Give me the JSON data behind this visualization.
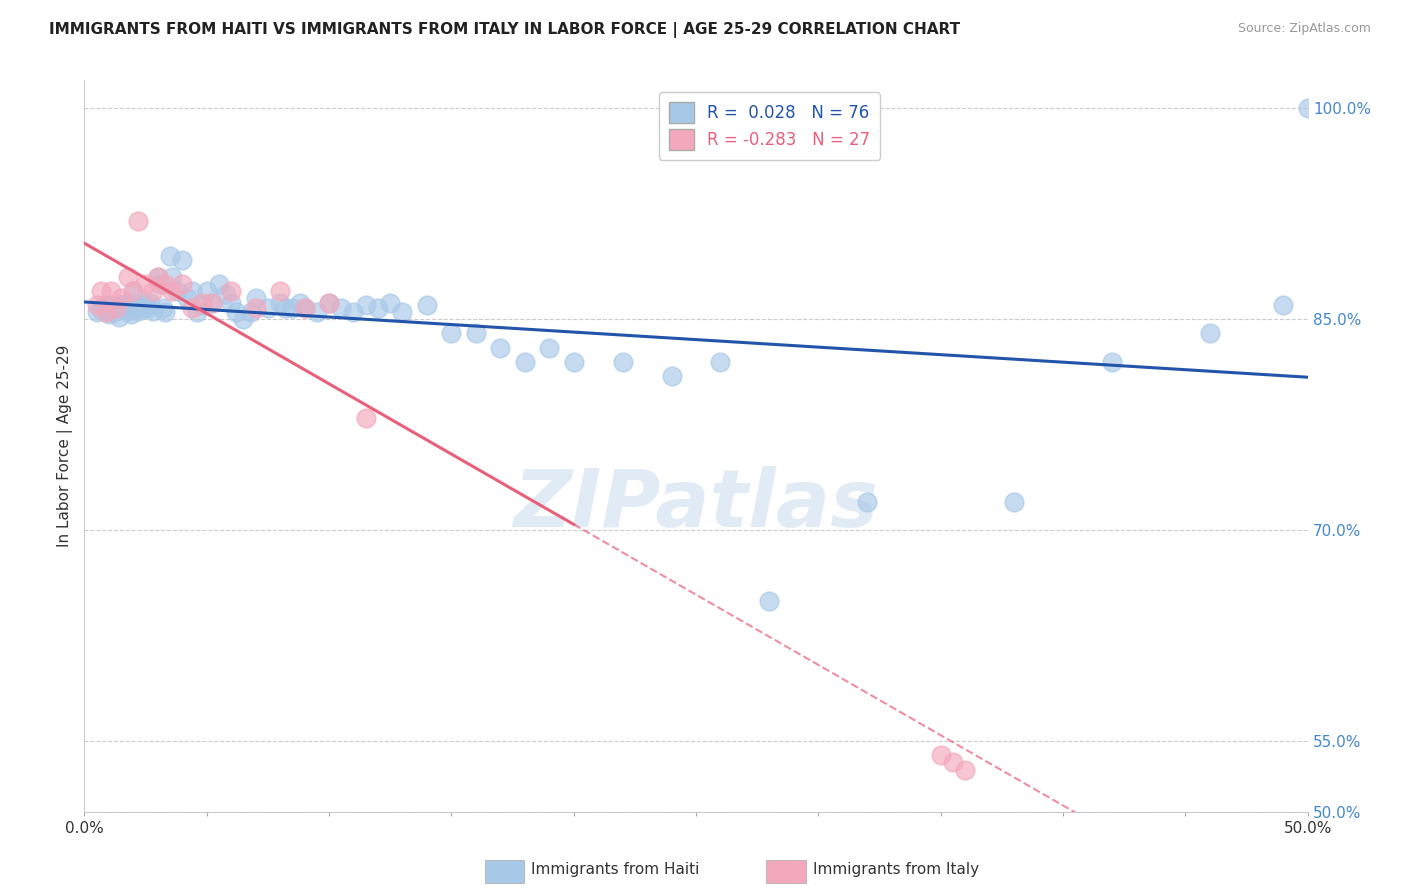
{
  "title": "IMMIGRANTS FROM HAITI VS IMMIGRANTS FROM ITALY IN LABOR FORCE | AGE 25-29 CORRELATION CHART",
  "source": "Source: ZipAtlas.com",
  "ylabel": "In Labor Force | Age 25-29",
  "xlim": [
    0.0,
    0.5
  ],
  "ylim": [
    0.5,
    1.02
  ],
  "yticks": [
    0.5,
    0.55,
    0.7,
    0.85,
    1.0
  ],
  "ytick_labels": [
    "50.0%",
    "55.0%",
    "70.0%",
    "85.0%",
    "100.0%"
  ],
  "haiti_R": "0.028",
  "haiti_N": "76",
  "italy_R": "-0.283",
  "italy_N": "27",
  "haiti_color": "#A8C8E8",
  "italy_color": "#F4A8BC",
  "haiti_line_color": "#2255AA",
  "italy_line_color": "#E8607A",
  "haiti_scatter_x": [
    0.005,
    0.007,
    0.008,
    0.009,
    0.01,
    0.01,
    0.011,
    0.012,
    0.013,
    0.014,
    0.015,
    0.016,
    0.017,
    0.018,
    0.019,
    0.02,
    0.021,
    0.022,
    0.023,
    0.024,
    0.025,
    0.026,
    0.027,
    0.028,
    0.03,
    0.031,
    0.032,
    0.033,
    0.035,
    0.036,
    0.038,
    0.04,
    0.042,
    0.044,
    0.046,
    0.048,
    0.05,
    0.052,
    0.055,
    0.058,
    0.06,
    0.062,
    0.065,
    0.068,
    0.07,
    0.075,
    0.08,
    0.082,
    0.085,
    0.088,
    0.09,
    0.095,
    0.1,
    0.105,
    0.11,
    0.115,
    0.12,
    0.125,
    0.13,
    0.14,
    0.15,
    0.16,
    0.17,
    0.18,
    0.19,
    0.2,
    0.22,
    0.24,
    0.26,
    0.28,
    0.32,
    0.38,
    0.42,
    0.46,
    0.49,
    0.5
  ],
  "haiti_scatter_y": [
    0.855,
    0.857,
    0.86,
    0.858,
    0.856,
    0.854,
    0.86,
    0.855,
    0.858,
    0.852,
    0.86,
    0.858,
    0.862,
    0.856,
    0.854,
    0.87,
    0.858,
    0.856,
    0.862,
    0.858,
    0.86,
    0.858,
    0.862,
    0.856,
    0.88,
    0.875,
    0.858,
    0.855,
    0.895,
    0.88,
    0.87,
    0.892,
    0.865,
    0.87,
    0.855,
    0.86,
    0.87,
    0.862,
    0.875,
    0.868,
    0.862,
    0.855,
    0.85,
    0.855,
    0.865,
    0.858,
    0.862,
    0.858,
    0.858,
    0.862,
    0.858,
    0.855,
    0.862,
    0.858,
    0.855,
    0.86,
    0.858,
    0.862,
    0.855,
    0.86,
    0.84,
    0.84,
    0.83,
    0.82,
    0.83,
    0.82,
    0.82,
    0.81,
    0.82,
    0.65,
    0.72,
    0.72,
    0.82,
    0.84,
    0.86,
    1.0
  ],
  "italy_scatter_x": [
    0.005,
    0.007,
    0.009,
    0.011,
    0.013,
    0.015,
    0.018,
    0.02,
    0.022,
    0.025,
    0.028,
    0.03,
    0.033,
    0.036,
    0.04,
    0.044,
    0.048,
    0.052,
    0.06,
    0.07,
    0.08,
    0.09,
    0.1,
    0.115,
    0.35,
    0.355,
    0.36
  ],
  "italy_scatter_y": [
    0.86,
    0.87,
    0.855,
    0.87,
    0.858,
    0.865,
    0.88,
    0.87,
    0.92,
    0.875,
    0.87,
    0.88,
    0.875,
    0.87,
    0.875,
    0.858,
    0.862,
    0.862,
    0.87,
    0.858,
    0.87,
    0.858,
    0.862,
    0.78,
    0.54,
    0.535,
    0.53
  ],
  "watermark_text": "ZIPatlas",
  "background_color": "#ffffff",
  "grid_color": "#cccccc"
}
